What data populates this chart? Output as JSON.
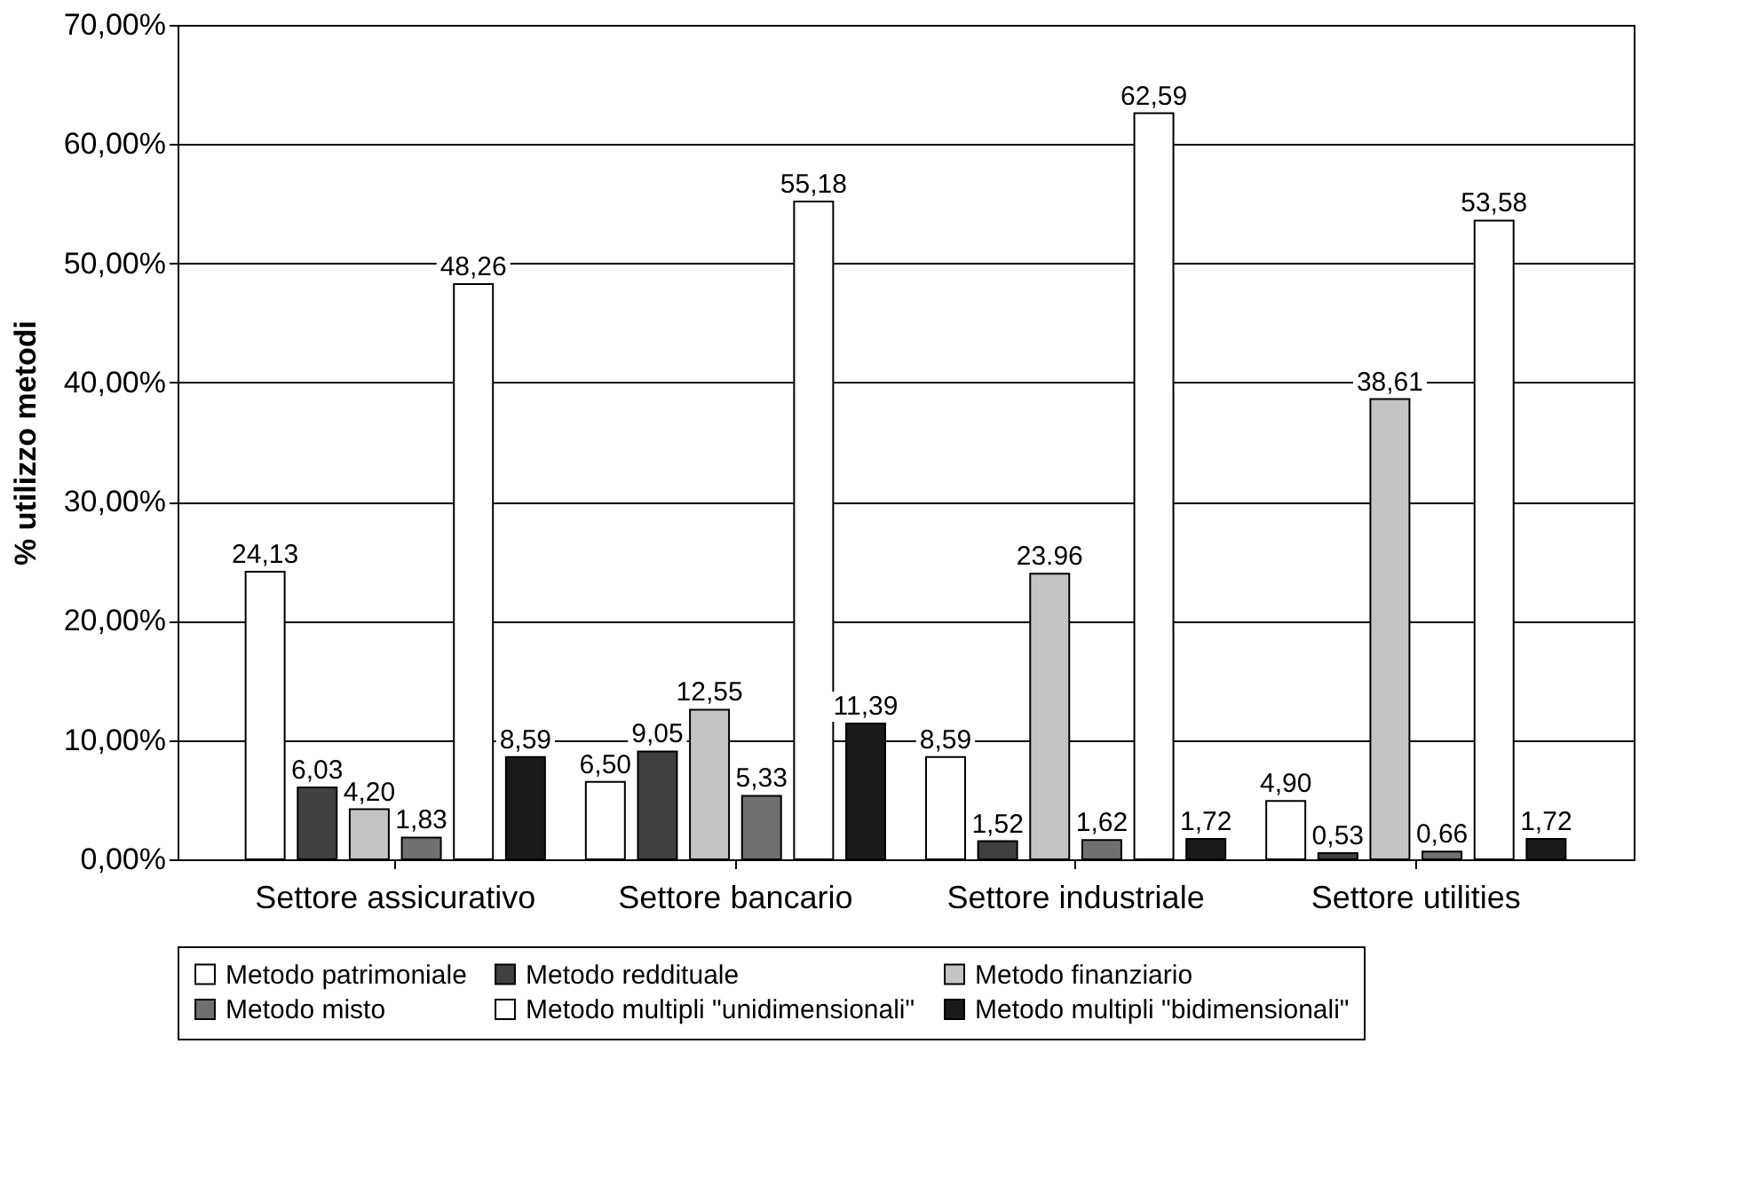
{
  "chart_data": {
    "type": "bar",
    "ylabel": "% utilizzo metodi",
    "categories": [
      "Settore assicurativo",
      "Settore bancario",
      "Settore industriale",
      "Settore utilities"
    ],
    "series": [
      {
        "name": "Metodo patrimoniale",
        "color": "#ffffff",
        "values": [
          24.13,
          6.5,
          8.59,
          4.9
        ],
        "value_labels": [
          "24,13",
          "6,50",
          "8,59",
          "4,90"
        ]
      },
      {
        "name": "Metodo reddituale",
        "color": "#404040",
        "values": [
          6.03,
          9.05,
          1.52,
          0.53
        ],
        "value_labels": [
          "6,03",
          "9,05",
          "1,52",
          "0,53"
        ]
      },
      {
        "name": "Metodo finanziario",
        "color": "#c4c4c4",
        "values": [
          4.2,
          12.55,
          23.96,
          38.61
        ],
        "value_labels": [
          "4,20",
          "12,55",
          "23.96",
          "38,61"
        ]
      },
      {
        "name": "Metodo misto",
        "color": "#707070",
        "values": [
          1.83,
          5.33,
          1.62,
          0.66
        ],
        "value_labels": [
          "1,83",
          "5,33",
          "1,62",
          "0,66"
        ]
      },
      {
        "name": "Metodo multipli \"unidimensionali\"",
        "color": "#ffffff",
        "values": [
          48.26,
          55.18,
          62.59,
          53.58
        ],
        "value_labels": [
          "48,26",
          "55,18",
          "62,59",
          "53,58"
        ]
      },
      {
        "name": "Metodo multipli \"bidimensionali\"",
        "color": "#1a1a1a",
        "values": [
          8.59,
          11.39,
          1.72,
          1.72
        ],
        "value_labels": [
          "8,59",
          "11,39",
          "1,72",
          "1,72"
        ]
      }
    ],
    "ylim": [
      0,
      70
    ],
    "yticks": [
      {
        "value": 0,
        "label": "0,00%"
      },
      {
        "value": 10,
        "label": "10,00%"
      },
      {
        "value": 20,
        "label": "20,00%"
      },
      {
        "value": 30,
        "label": "30,00%"
      },
      {
        "value": 40,
        "label": "40,00%"
      },
      {
        "value": 50,
        "label": "50,00%"
      },
      {
        "value": 60,
        "label": "60,00%"
      },
      {
        "value": 70,
        "label": "70,00%"
      }
    ],
    "grid": "y",
    "legend": "bottom"
  }
}
